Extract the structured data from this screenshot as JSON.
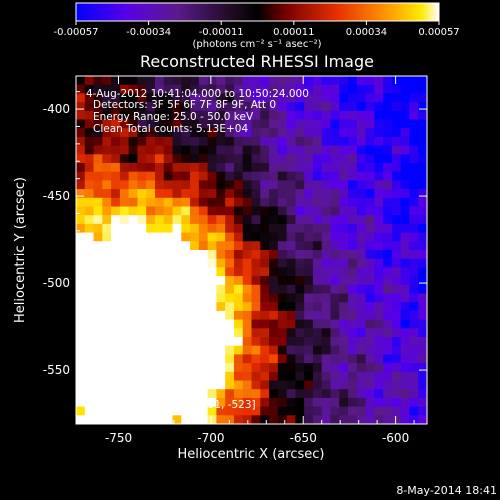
{
  "chart_data": {
    "type": "heatmap",
    "title": "Reconstructed RHESSI Image",
    "xlabel": "Heliocentric X (arcsec)",
    "ylabel": "Heliocentric Y (arcsec)",
    "xlim": [
      -773,
      -583
    ],
    "ylim": [
      -581,
      -381
    ],
    "x_ticks": [
      -750,
      -700,
      -650,
      -600
    ],
    "y_ticks": [
      -400,
      -450,
      -500,
      -550
    ],
    "colorbar": {
      "ticks": [
        "-0.00057",
        "-0.00034",
        "-0.00011",
        "0.00011",
        "0.00034",
        "0.00057"
      ],
      "range": [
        -0.00057,
        0.00057
      ],
      "unit_label": "(photons cm⁻² s⁻¹ asec⁻²)",
      "colors": [
        "#0000ff",
        "#7a00ff",
        "#3a0a4a",
        "#000000",
        "#7a0000",
        "#e83000",
        "#ff8a00",
        "#ffd800",
        "#ffffff"
      ]
    },
    "annotations": [
      "4-Aug-2012 10:41:04.000 to 10:50:24.000",
      "Detectors: 3F 5F 6F 7F 8F 9F, Att 0",
      "Energy Range: 25.0 - 50.0 keV",
      "Clean    Total counts: 5.13E+04"
    ],
    "peak_label": "Position of Peak = [-731, -523]",
    "peak": [
      -731,
      -523
    ],
    "footer_date": "8-May-2014 18:41"
  }
}
